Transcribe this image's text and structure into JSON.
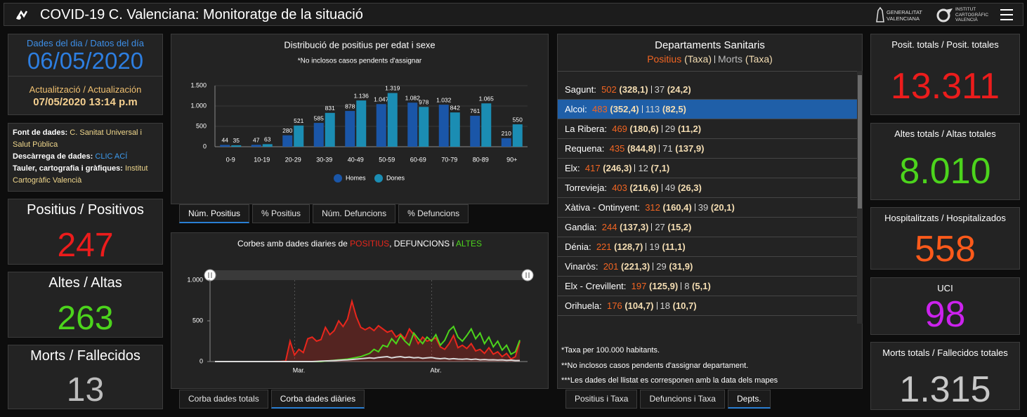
{
  "header": {
    "title": "COVID-19 C. Valenciana: Monitoratge de la situació",
    "logo_1": [
      "GENERALITAT",
      "VALENCIANA"
    ],
    "logo_2": [
      "INSTITUT",
      "CARTOGRÀFIC",
      "VALENCIÀ"
    ]
  },
  "date_box": {
    "label": "Dades del dia / Datos del día",
    "date": "06/05/2020",
    "update_label": "Actualització / Actualización",
    "update": "07/05/2020 13:14 p.m"
  },
  "sources": {
    "source_label": "Font de dades:",
    "source": "C. Sanitat Universal i Salut Pública",
    "download_label": "Descàrrega de dades:",
    "download": "CLIC ACÍ",
    "credits_label": "Tauler, cartografia i gràfiques:",
    "credits": "Institut Cartogràfic Valencià"
  },
  "left_kpis": [
    {
      "label": "Positius / Positivos",
      "value": "247",
      "color": "#ec1c1c"
    },
    {
      "label": "Altes / Altas",
      "value": "263",
      "color": "#4cd41c"
    },
    {
      "label": "Morts / Fallecidos",
      "value": "13",
      "color": "#bdbdbd"
    }
  ],
  "right_kpis": [
    {
      "label": "Posit. totals / Posit. totales",
      "value": "13.311",
      "color": "#ec1c1c"
    },
    {
      "label": "Altes totals / Altas totales",
      "value": "8.010",
      "color": "#4cd41c"
    },
    {
      "label": "Hospitalitzats / Hospitalizados",
      "value": "558",
      "color": "#ff5a1a"
    },
    {
      "label": "UCI",
      "value": "98",
      "color": "#cc22ee"
    },
    {
      "label": "Morts totals / Fallecidos totales",
      "value": "1.315",
      "color": "#c8c8c8"
    }
  ],
  "bar_tabs": {
    "items": [
      "Núm. Positius",
      "% Positius",
      "Núm. Defuncions",
      "% Defuncions"
    ],
    "active": 0
  },
  "line_tabs": {
    "items": [
      "Corba dades totals",
      "Corba dades diàries"
    ],
    "active": 1
  },
  "dept_tabs": {
    "items": [
      "Positius i Taxa",
      "Defuncions i Taxa",
      "Depts."
    ],
    "active": 2
  },
  "departments": {
    "title": "Departaments Sanitaris",
    "subtitle": {
      "positius": "Positius",
      "taxa_1": "(Taxa)",
      "morts": "Morts",
      "taxa_2": "(Taxa)"
    },
    "selected": 1,
    "rows": [
      {
        "name": "Sagunt:",
        "positius": "502",
        "taxa": "(328,1)",
        "morts": "37",
        "taxa_morts": "(24,2)"
      },
      {
        "name": "Alcoi:",
        "positius": "483",
        "taxa": "(352,4)",
        "morts": "113",
        "taxa_morts": "(82,5)"
      },
      {
        "name": "La Ribera:",
        "positius": "469",
        "taxa": "(180,6)",
        "morts": "29",
        "taxa_morts": "(11,2)"
      },
      {
        "name": "Requena:",
        "positius": "435",
        "taxa": "(844,8)",
        "morts": "71",
        "taxa_morts": "(137,9)"
      },
      {
        "name": "Elx:",
        "positius": "417",
        "taxa": "(246,3)",
        "morts": "12",
        "taxa_morts": "(7,1)"
      },
      {
        "name": "Torrevieja:",
        "positius": "403",
        "taxa": "(216,6)",
        "morts": "49",
        "taxa_morts": "(26,3)"
      },
      {
        "name": "Xàtiva - Ontinyent:",
        "positius": "312",
        "taxa": "(160,4)",
        "morts": "39",
        "taxa_morts": "(20,1)"
      },
      {
        "name": "Gandia:",
        "positius": "244",
        "taxa": "(137,3)",
        "morts": "27",
        "taxa_morts": "(15,2)"
      },
      {
        "name": "Dénia:",
        "positius": "221",
        "taxa": "(128,7)",
        "morts": "19",
        "taxa_morts": "(11,1)"
      },
      {
        "name": "Vinaròs:",
        "positius": "201",
        "taxa": "(221,3)",
        "morts": "29",
        "taxa_morts": "(31,9)"
      },
      {
        "name": "Elx - Crevillent:",
        "positius": "197",
        "taxa": "(125,9)",
        "morts": "8",
        "taxa_morts": "(5,1)"
      },
      {
        "name": "Orihuela:",
        "positius": "176",
        "taxa": "(104,7)",
        "morts": "18",
        "taxa_morts": "(10,7)"
      }
    ],
    "notes": [
      "*Taxa per 100.000 habitants.",
      "**No inclosos casos pendents d'assignar departament.",
      "***Les dades del llistat es corresponen amb la data dels mapes"
    ]
  },
  "chart_data": [
    {
      "type": "bar",
      "title": "Distribució de positius per edat i sexe",
      "subtitle": "*No inclosos casos pendents d'assignar",
      "categories": [
        "0-9",
        "10-19",
        "20-29",
        "30-39",
        "40-49",
        "50-59",
        "60-69",
        "70-79",
        "80-89",
        "90+"
      ],
      "series": [
        {
          "name": "Homes",
          "color": "#1a56a8",
          "values": [
            44,
            47,
            280,
            585,
            878,
            1047,
            1082,
            1032,
            761,
            210
          ],
          "value_labels": [
            "44",
            "47",
            "280",
            "585",
            "878",
            "1.047",
            "1.082",
            "1.032",
            "761",
            "210"
          ]
        },
        {
          "name": "Dones",
          "color": "#1b8db3",
          "values": [
            35,
            63,
            521,
            831,
            1136,
            1319,
            978,
            842,
            1065,
            550
          ],
          "value_labels": [
            "35",
            "63",
            "521",
            "831",
            "1.136",
            "1.319",
            "978",
            "842",
            "1.065",
            "550"
          ]
        }
      ],
      "ylim": [
        0,
        1500
      ],
      "yticks": [
        0,
        500,
        {
          "value": 1000,
          "label": "1.000"
        },
        {
          "value": 1500,
          "label": "1.500"
        }
      ]
    },
    {
      "type": "line",
      "title": [
        {
          "text": "Corbes amb dades diaries de ",
          "color": "#ffffff"
        },
        {
          "text": "POSITIUS",
          "color": "#e8261c"
        },
        {
          "text": ", DEFUNCIONS i ",
          "color": "#ffffff"
        },
        {
          "text": "ALTES",
          "color": "#4cd41c"
        }
      ],
      "categories": [
        null,
        null,
        null,
        null,
        null,
        null,
        null,
        null,
        null,
        null,
        null,
        null,
        null,
        null,
        null,
        null,
        null,
        null,
        null,
        "Mar.",
        null,
        null,
        null,
        null,
        null,
        null,
        null,
        null,
        null,
        null,
        null,
        null,
        null,
        null,
        null,
        null,
        null,
        null,
        null,
        null,
        null,
        null,
        null,
        null,
        null,
        null,
        null,
        null,
        null,
        null,
        "Abr.",
        null,
        null,
        null,
        null,
        null,
        null,
        null,
        null,
        null,
        null,
        null,
        null,
        null,
        null,
        null,
        null,
        null,
        null,
        null
      ],
      "series": [
        {
          "color": "#e8261c",
          "values": [
            0,
            0,
            0,
            0,
            0,
            0,
            0,
            0,
            0,
            0,
            0,
            0,
            0,
            0,
            1,
            2,
            5,
            250,
            80,
            150,
            110,
            280,
            300,
            250,
            270,
            420,
            330,
            380,
            500,
            430,
            520,
            740,
            550,
            420,
            390,
            420,
            380,
            440,
            400,
            360,
            380,
            300,
            340,
            280,
            400,
            330,
            220,
            300,
            250,
            270,
            290,
            180,
            150,
            220,
            320,
            170,
            200,
            160,
            220,
            130,
            150,
            100,
            170,
            90,
            120,
            60,
            100,
            30,
            60,
            247
          ]
        },
        {
          "color": "#4cd41c",
          "values": [
            0,
            0,
            0,
            0,
            0,
            0,
            0,
            0,
            0,
            0,
            0,
            0,
            0,
            0,
            0,
            0,
            0,
            0,
            0,
            0,
            0,
            0,
            0,
            0,
            0,
            5,
            10,
            15,
            20,
            25,
            30,
            40,
            50,
            60,
            80,
            100,
            150,
            120,
            200,
            180,
            280,
            220,
            320,
            250,
            200,
            350,
            280,
            220,
            300,
            250,
            330,
            200,
            260,
            380,
            430,
            300,
            250,
            320,
            400,
            280,
            350,
            220,
            300,
            180,
            250,
            140,
            200,
            90,
            120,
            263
          ]
        },
        {
          "color": "#d9d9d9",
          "values": [
            0,
            0,
            0,
            0,
            0,
            0,
            0,
            0,
            0,
            0,
            0,
            0,
            0,
            0,
            0,
            0,
            0,
            0,
            0,
            0,
            0,
            0,
            0,
            2,
            5,
            8,
            10,
            12,
            15,
            18,
            20,
            25,
            30,
            35,
            40,
            45,
            40,
            50,
            55,
            60,
            45,
            55,
            60,
            50,
            55,
            45,
            50,
            40,
            45,
            50,
            40,
            35,
            40,
            30,
            35,
            30,
            28,
            32,
            25,
            30,
            22,
            25,
            20,
            22,
            18,
            20,
            15,
            18,
            12,
            13
          ]
        }
      ],
      "ylim": [
        0,
        1000
      ],
      "yticks": [
        0,
        500,
        {
          "value": 1000,
          "label": "1.000"
        }
      ]
    }
  ]
}
